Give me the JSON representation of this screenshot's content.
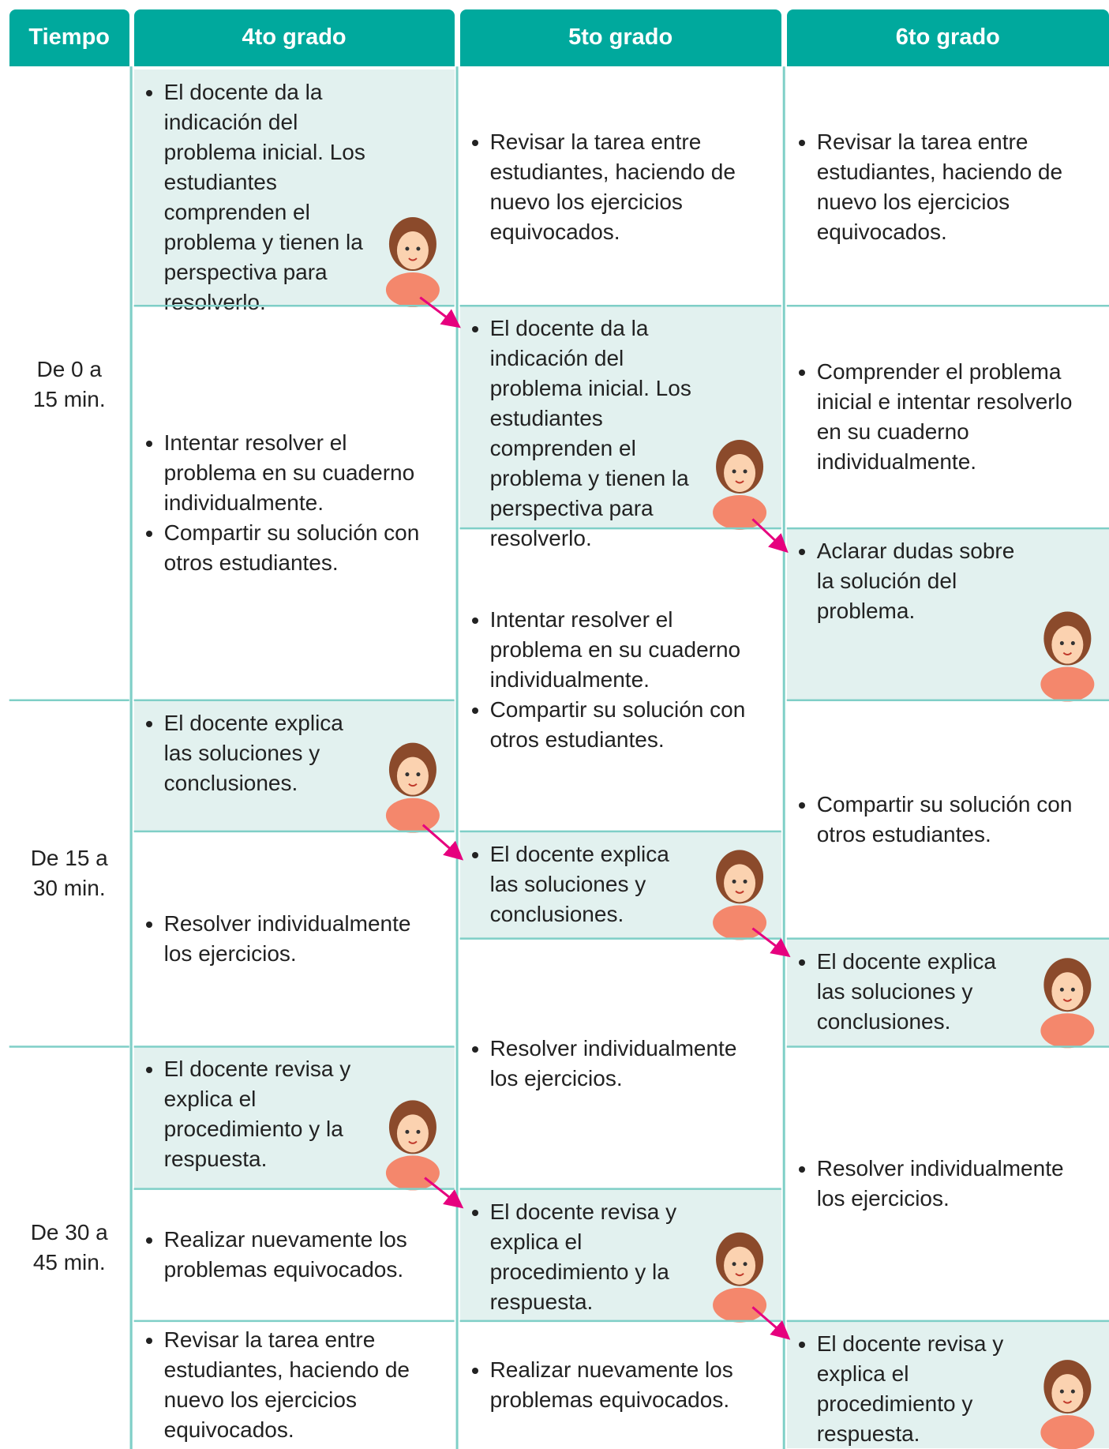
{
  "header": {
    "columns": [
      "Tiempo",
      "4to grado",
      "5to grado",
      "6to grado"
    ]
  },
  "time_rows": [
    [
      "De 0 a",
      "15 min."
    ],
    [
      "De 15 a",
      "30 min."
    ],
    [
      "De 30 a",
      "45 min."
    ]
  ],
  "grades": [
    {
      "cells": [
        {
          "items": [
            "El docente da la indicación del problema inicial. Los estudiantes comprenden el problema y tienen la perspectiva para resolverlo."
          ]
        },
        {
          "items": [
            "Intentar resolver el problema en su cuaderno individualmente.",
            "Compartir su solución con otros estudiantes."
          ]
        },
        {
          "items": [
            "El docente explica las soluciones y conclusiones."
          ]
        },
        {
          "items": [
            "Resolver individualmente los ejercicios."
          ]
        },
        {
          "items": [
            "El docente revisa y explica el procedimiento y la respuesta."
          ]
        },
        {
          "items": [
            "Realizar nuevamente los problemas equivocados."
          ]
        },
        {
          "items": [
            "Revisar la tarea entre estudiantes, haciendo de nuevo los ejercicios equivocados."
          ]
        }
      ]
    },
    {
      "cells": [
        {
          "items": [
            "Revisar la tarea entre estudiantes, haciendo de nuevo los ejercicios equivocados."
          ]
        },
        {
          "items": [
            "El docente da la indicación del problema inicial. Los estudiantes comprenden el problema y tienen la perspectiva para resolverlo."
          ]
        },
        {
          "items": [
            "Intentar resolver el problema en su cuaderno individualmente.",
            "Compartir su solución con otros estudiantes."
          ]
        },
        {
          "items": [
            "El docente explica las soluciones y conclusiones."
          ]
        },
        {
          "items": [
            "Resolver individualmente los ejercicios."
          ]
        },
        {
          "items": [
            "El docente revisa y explica el procedimiento y la respuesta."
          ]
        },
        {
          "items": [
            "Realizar nuevamente los problemas equivocados."
          ]
        }
      ]
    },
    {
      "cells": [
        {
          "items": [
            "Revisar la tarea entre estudiantes, haciendo de nuevo los ejercicios equivocados."
          ]
        },
        {
          "items": [
            "Comprender el problema inicial e intentar resolverlo en su cuaderno individualmente."
          ]
        },
        {
          "items": [
            "Aclarar dudas sobre la solución del problema."
          ]
        },
        {
          "items": [
            "Compartir su solución con otros estudiantes."
          ]
        },
        {
          "items": [
            "El docente explica las soluciones y conclusiones."
          ]
        },
        {
          "items": [
            "Resolver individualmente los ejercicios."
          ]
        },
        {
          "items": [
            "El docente revisa y explica el procedimiento y respuesta."
          ]
        }
      ]
    }
  ]
}
